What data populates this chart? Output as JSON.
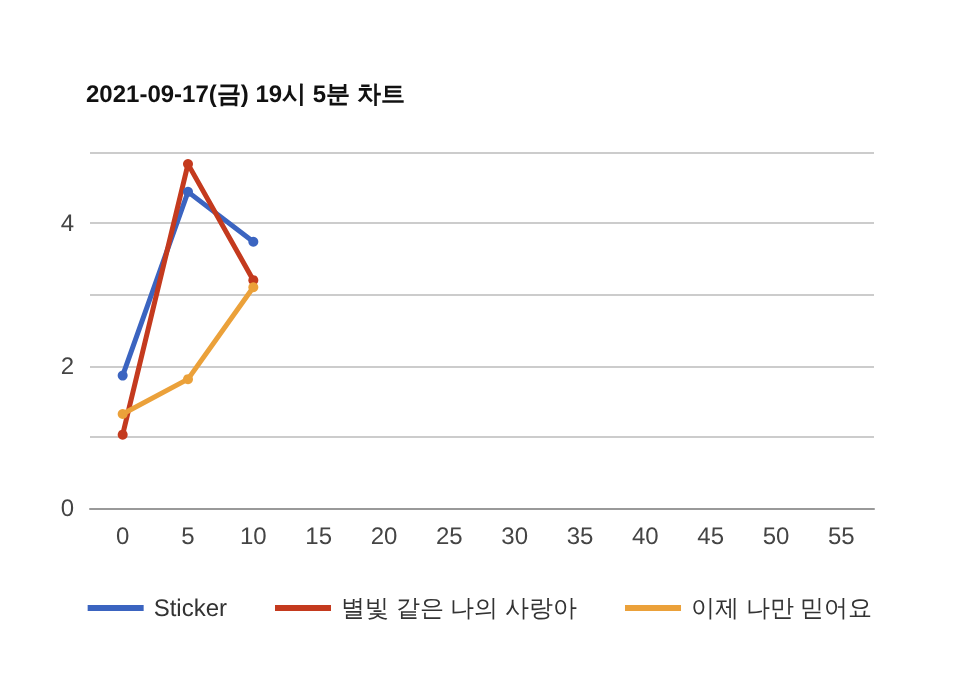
{
  "chart_data": {
    "type": "line",
    "title": "2021-09-17(금) 19시 5분 차트",
    "x": [
      0,
      5,
      10
    ],
    "series": [
      {
        "name": "Sticker",
        "color": "#3b64c0",
        "values": [
          1.86,
          4.44,
          3.74
        ]
      },
      {
        "name": "별빛 같은 나의 사랑아",
        "color": "#c43a1e",
        "values": [
          1.03,
          4.83,
          3.2
        ]
      },
      {
        "name": "이제 나만 믿어요",
        "color": "#eba13a",
        "values": [
          1.32,
          1.81,
          3.1
        ]
      }
    ],
    "xlim": [
      -2.5,
      57.5
    ],
    "xticks": [
      0,
      5,
      10,
      15,
      20,
      25,
      30,
      35,
      40,
      45,
      50,
      55
    ],
    "ylim": [
      0,
      5
    ],
    "yticks": [
      0,
      {
        "value": 1,
        "label": null
      },
      2,
      {
        "value": 3,
        "label": null
      },
      4,
      {
        "value": 5,
        "label": null
      }
    ],
    "grid": "y",
    "legend": "bottom",
    "marker": "circle",
    "line_style": "solid"
  }
}
